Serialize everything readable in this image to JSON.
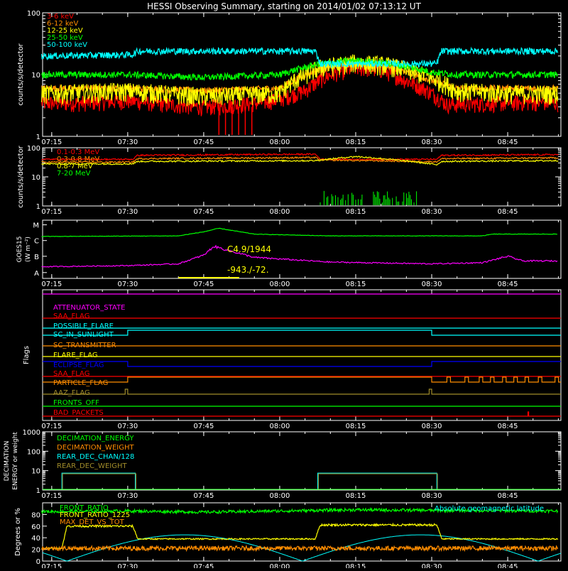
{
  "title": "HESSI Observing Summary, starting on 2014/01/02 07:13:12 UT",
  "colors": {
    "background": "#000000",
    "axes": "#ffffff",
    "red": "#ff0000",
    "orange": "#ff8c00",
    "yellow": "#ffff00",
    "green": "#00ff00",
    "cyan": "#00ffff",
    "magenta": "#ff00ff",
    "blue": "#0000ff",
    "olive": "#a08c2a"
  },
  "time_axis": {
    "ticks": [
      "07:15",
      "07:30",
      "07:45",
      "08:00",
      "08:15",
      "08:30",
      "08:45"
    ]
  },
  "chart_data": [
    {
      "type": "line",
      "panel": "lightcurves-low",
      "ylabel": "counts/s/detector",
      "yscale": "log",
      "ylim": [
        1,
        100
      ],
      "yticks": [
        "1",
        "10",
        "100"
      ],
      "series": [
        {
          "name": "3-6 keV",
          "color": "#ff0000",
          "x": [
            "07:13",
            "07:20",
            "07:30",
            "07:40",
            "07:45",
            "07:50",
            "07:56",
            "08:00",
            "08:05",
            "08:10",
            "08:15",
            "08:20",
            "08:25",
            "08:30",
            "08:33",
            "08:40",
            "08:50",
            "08:55"
          ],
          "y": [
            3.5,
            3.5,
            3.8,
            3.2,
            3.0,
            3.2,
            3.5,
            4.0,
            5.5,
            10,
            13,
            12,
            8,
            5,
            3.3,
            3.4,
            3.6,
            3.5
          ]
        },
        {
          "name": "6-12 keV",
          "color": "#ff8c00",
          "x": [
            "07:13",
            "07:30",
            "07:45",
            "08:00",
            "08:08",
            "08:15",
            "08:22",
            "08:30",
            "08:35",
            "08:45",
            "08:55"
          ],
          "y": [
            6,
            6,
            5.5,
            6,
            12,
            15,
            13,
            8,
            6,
            6,
            6
          ]
        },
        {
          "name": "12-25 keV",
          "color": "#ffff00",
          "x": [
            "07:13",
            "07:30",
            "07:45",
            "08:00",
            "08:08",
            "08:15",
            "08:22",
            "08:30",
            "08:35",
            "08:45",
            "08:55"
          ],
          "y": [
            5,
            5.5,
            4.5,
            5,
            13,
            16,
            14,
            9,
            5.5,
            5,
            5
          ]
        },
        {
          "name": "25-50 keV",
          "color": "#00ff00",
          "x": [
            "07:13",
            "07:30",
            "07:45",
            "08:00",
            "08:08",
            "08:15",
            "08:22",
            "08:30",
            "08:35",
            "08:45",
            "08:55"
          ],
          "y": [
            10,
            10,
            9,
            10,
            15,
            17,
            15,
            11,
            10,
            10,
            10
          ]
        },
        {
          "name": "50-100 keV",
          "color": "#00ffff",
          "x": [
            "07:13",
            "07:31",
            "07:32",
            "08:07",
            "08:08",
            "08:31",
            "08:32",
            "08:55"
          ],
          "y": [
            20,
            21,
            24,
            24,
            15,
            15,
            24,
            24
          ]
        }
      ]
    },
    {
      "type": "line",
      "panel": "lightcurves-high",
      "ylabel": "counts/s/detector",
      "yscale": "log",
      "ylim": [
        1,
        100
      ],
      "yticks": [
        "1",
        "10",
        "100"
      ],
      "series": [
        {
          "name": "0.1-0.3 MeV",
          "color": "#ff0000",
          "x": [
            "07:13",
            "07:31",
            "07:32",
            "08:07",
            "08:08",
            "08:31",
            "08:32",
            "08:55"
          ],
          "y": [
            40,
            40,
            55,
            60,
            40,
            40,
            55,
            58
          ]
        },
        {
          "name": "0.3-0.8 MeV",
          "color": "#ff8c00",
          "x": [
            "07:13",
            "07:31",
            "07:32",
            "08:07",
            "08:08",
            "08:31",
            "08:32",
            "08:55"
          ],
          "y": [
            32,
            32,
            42,
            46,
            38,
            33,
            42,
            45
          ]
        },
        {
          "name": "0.8-7 MeV",
          "color": "#ffff00",
          "x": [
            "07:13",
            "07:31",
            "07:32",
            "08:07",
            "08:15",
            "08:31",
            "08:32",
            "08:55"
          ],
          "y": [
            28,
            28,
            34,
            36,
            50,
            26,
            34,
            36
          ]
        },
        {
          "name": "7-20 MeV",
          "color": "#00ff00",
          "x": [
            "08:08",
            "08:27"
          ],
          "y": [
            1.5,
            1.5
          ]
        }
      ]
    },
    {
      "type": "line",
      "panel": "goes",
      "ylabel": "GOES15",
      "ylabel2": "(W m⁻²)",
      "yticks": [
        "A",
        "B",
        "C",
        "M"
      ],
      "annotations": [
        "C4.9/1944",
        "-943./-72."
      ],
      "series": [
        {
          "color": "#00ff00",
          "x": [
            "07:13",
            "07:40",
            "07:45",
            "07:48",
            "07:55",
            "08:10",
            "08:40",
            "08:42",
            "08:55"
          ],
          "y": [
            0.72,
            0.73,
            0.8,
            0.86,
            0.76,
            0.73,
            0.73,
            0.76,
            0.76
          ]
        },
        {
          "color": "#ff00ff",
          "x": [
            "07:13",
            "07:30",
            "07:40",
            "07:45",
            "07:47",
            "07:55",
            "08:10",
            "08:30",
            "08:40",
            "08:45",
            "08:48",
            "08:55"
          ],
          "y": [
            0.2,
            0.22,
            0.25,
            0.4,
            0.55,
            0.36,
            0.28,
            0.25,
            0.27,
            0.38,
            0.3,
            0.3
          ]
        }
      ]
    },
    {
      "type": "line",
      "panel": "flags",
      "ylabel": "Flags",
      "flags": [
        {
          "name": "ATTENUATOR_STATE",
          "color": "#ff00ff"
        },
        {
          "name": "SAA_FLAG",
          "color": "#ff0000"
        },
        {
          "name": "POSSIBLE_FLARE",
          "color": "#00ffff"
        },
        {
          "name": "SC_IN_SUNLIGHT",
          "color": "#00ffff"
        },
        {
          "name": "SC_TRANSMITTER",
          "color": "#ff8c00"
        },
        {
          "name": "FLARE_FLAG",
          "color": "#ffff00"
        },
        {
          "name": "ECLIPSE_FLAG",
          "color": "#0000ff"
        },
        {
          "name": "SAA_FLAG",
          "color": "#ff0000"
        },
        {
          "name": "PARTICLE_FLAG",
          "color": "#ff8c00"
        },
        {
          "name": "AAZ_FLAG",
          "color": "#a08c2a"
        },
        {
          "name": "FRONTS_OFF",
          "color": "#00ff00"
        },
        {
          "name": "BAD_PACKETS",
          "color": "#ff0000"
        }
      ]
    },
    {
      "type": "line",
      "panel": "decimation",
      "ylabel": "DECIMATION",
      "ylabel2": "ENERGY or weight",
      "yscale": "log",
      "ylim": [
        1,
        1000
      ],
      "yticks": [
        "1",
        "10",
        "100",
        "1000"
      ],
      "series": [
        {
          "name": "DECIMATION_ENERGY",
          "color": "#00ff00"
        },
        {
          "name": "DECIMATION_WEIGHT",
          "color": "#ff8c00"
        },
        {
          "name": "REAR_DEC_CHAN/128",
          "color": "#00ffff"
        },
        {
          "name": "REAR_DEC_WEIGHT",
          "color": "#a08c2a"
        }
      ]
    },
    {
      "type": "line",
      "panel": "ratios",
      "ylabel": "Degrees or %",
      "ylim": [
        0,
        100
      ],
      "yticks": [
        "0",
        "20",
        "40",
        "60",
        "80"
      ],
      "note": "Absolute geomagnetic latitude",
      "series": [
        {
          "name": "FRONT_RATIO",
          "color": "#00ff00"
        },
        {
          "name": "FRONT_RATIO_1225",
          "color": "#ffff00"
        },
        {
          "name": "MAX_DET_VS_TOT",
          "color": "#ff8c00"
        }
      ]
    }
  ]
}
